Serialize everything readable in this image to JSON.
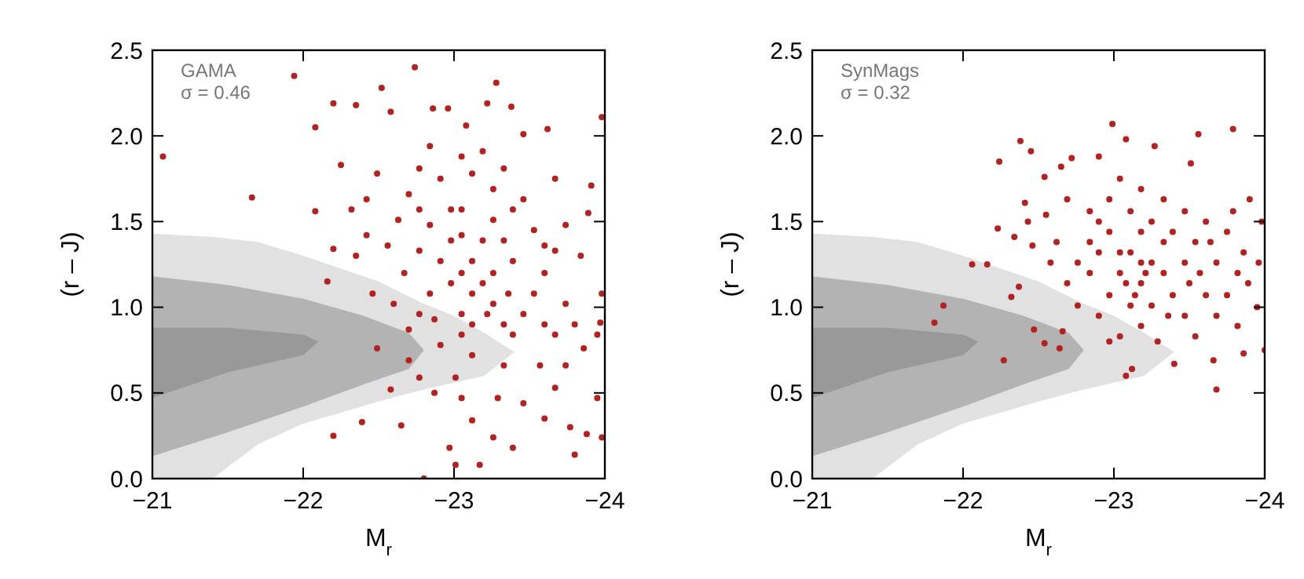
{
  "chart_data": [
    {
      "type": "scatter",
      "xlabel": "M$_{r}$",
      "ylabel": "(r – J)",
      "xlim": [
        -21,
        -24
      ],
      "ylim": [
        0,
        2.5
      ],
      "xticks": [
        {
          "value": -21,
          "label": "−21"
        },
        {
          "value": -22,
          "label": "−22"
        },
        {
          "value": -23,
          "label": "−23"
        },
        {
          "value": -24,
          "label": "−24"
        }
      ],
      "yticks": [
        {
          "value": 0,
          "label": "0.0"
        },
        {
          "value": 0.5,
          "label": "0.5"
        },
        {
          "value": 1,
          "label": "1.0"
        },
        {
          "value": 1.5,
          "label": "1.5"
        },
        {
          "value": 2,
          "label": "2.0"
        },
        {
          "value": 2.5,
          "label": "2.5"
        }
      ],
      "annotations": [
        "GAMA",
        "σ = 0.46"
      ],
      "series": [
        {
          "type": "area",
          "color": "#e1e1e1",
          "x": [
            -21,
            -21.4,
            -21.7,
            -22,
            -22.5,
            -22.8,
            -23,
            -23.2,
            -23.4,
            -23.2,
            -23,
            -22.8,
            -22.5,
            -22,
            -21.7,
            -21.4,
            -21
          ],
          "values": [
            1.43,
            1.41,
            1.38,
            1.3,
            1.15,
            1.02,
            0.95,
            0.85,
            0.74,
            0.6,
            0.56,
            0.52,
            0.45,
            0.32,
            0.2,
            0,
            0
          ]
        },
        {
          "type": "area",
          "color": "#b3b3b3",
          "x": [
            -21,
            -21.5,
            -22,
            -22.4,
            -22.7,
            -22.8,
            -22.7,
            -22.4,
            -22,
            -21.5,
            -21
          ],
          "values": [
            1.18,
            1.13,
            1.05,
            0.95,
            0.85,
            0.75,
            0.64,
            0.55,
            0.42,
            0.27,
            0.13
          ]
        },
        {
          "type": "area",
          "color": "#999999",
          "x": [
            -21,
            -21.5,
            -22,
            -22.1,
            -22,
            -21.5,
            -21
          ],
          "values": [
            0.88,
            0.88,
            0.84,
            0.8,
            0.72,
            0.62,
            0.47
          ]
        },
        {
          "type": "scatter",
          "marker": "circle",
          "color": "#b22222",
          "x": [
            -21.07,
            -21.66,
            -21.94,
            -22.74,
            -23.28,
            -22.2,
            -22.08,
            -22.35,
            -22.16,
            -22.2,
            -22.39,
            -22.8,
            -23.01,
            -23.17,
            -23.39,
            -23.8,
            -23.98,
            -23.98,
            -23.62,
            -23.46,
            -23.08,
            -23.22,
            -23.38,
            -22.52,
            -22.58,
            -22.86,
            -22.96,
            -22.25,
            -22.08,
            -22.2,
            -22.49,
            -23.91,
            -23.67,
            -23.89,
            -22.58,
            -22.65,
            -22.97,
            -23.12,
            -23.26,
            -23.6,
            -23.77,
            -23.88,
            -23.95,
            -23.86,
            -23.95,
            -23.97,
            -23.98,
            -23.84,
            -23.74,
            -22.42,
            -22.35,
            -22.46,
            -22.49,
            -22.7,
            -22.77,
            -22.87,
            -23.01,
            -23.05,
            -23.29,
            -23.46,
            -23.67,
            -23.74,
            -23.57,
            -23.33,
            -23.12,
            -22.91,
            -22.7,
            -22.6,
            -22.67,
            -22.56,
            -22.63,
            -22.7,
            -22.77,
            -22.84,
            -22.91,
            -22.98,
            -23.05,
            -23.12,
            -23.19,
            -23.26,
            -23.33,
            -23.39,
            -23.46,
            -23.53,
            -23.6,
            -23.67,
            -23.53,
            -23.39,
            -23.26,
            -23.12,
            -23.05,
            -23.19,
            -23.33,
            -23.46,
            -22.98,
            -23.05,
            -22.91,
            -22.84,
            -22.77,
            -23.05,
            -23.12,
            -23.22,
            -23.26,
            -23.36,
            -23.39,
            -23.19,
            -22.98,
            -22.84,
            -22.77,
            -23.74,
            -23.8,
            -23.67,
            -23.6,
            -23.05,
            -22.87,
            -23.12,
            -23.6,
            -22.77,
            -22.42,
            -22.32,
            -23.33,
            -23.26,
            -23.05
          ],
          "values": [
            1.88,
            1.64,
            2.35,
            2.4,
            2.31,
            2.19,
            2.05,
            2.18,
            1.15,
            0.25,
            0.33,
            0.0,
            0.08,
            0.08,
            0.18,
            0.14,
            0.24,
            2.11,
            2.04,
            2.01,
            2.06,
            2.19,
            2.17,
            2.28,
            2.14,
            2.16,
            2.16,
            1.83,
            1.56,
            1.34,
            1.78,
            1.71,
            1.75,
            1.55,
            0.52,
            0.31,
            0.18,
            0.34,
            0.24,
            0.35,
            0.3,
            0.26,
            0.47,
            0.76,
            0.84,
            0.91,
            1.08,
            1.3,
            1.48,
            1.42,
            1.3,
            1.08,
            0.76,
            0.69,
            0.59,
            0.5,
            0.59,
            0.47,
            0.47,
            0.44,
            0.53,
            0.66,
            0.66,
            0.66,
            0.72,
            0.78,
            0.87,
            1.02,
            1.2,
            1.36,
            1.51,
            1.66,
            1.81,
            1.94,
            1.75,
            1.57,
            1.42,
            1.27,
            1.14,
            1.02,
            0.9,
            0.84,
            0.96,
            1.08,
            1.2,
            1.33,
            1.45,
            1.57,
            1.69,
            1.78,
            1.88,
            1.91,
            1.81,
            1.63,
            1.14,
            1.2,
            1.27,
            1.08,
            0.96,
            0.96,
            1.08,
            0.96,
            1.2,
            1.08,
            1.27,
            1.39,
            1.39,
            1.48,
            1.33,
            1.02,
            0.9,
            0.84,
            0.9,
            0.84,
            0.93,
            0.9,
            1.36,
            1.57,
            1.63,
            1.57,
            1.39,
            1.51,
            1.57
          ]
        }
      ]
    },
    {
      "type": "scatter",
      "xlabel": "M$_{r}$",
      "ylabel": "(r – J)",
      "xlim": [
        -21,
        -24
      ],
      "ylim": [
        0,
        2.5
      ],
      "xticks": [
        {
          "value": -21,
          "label": "−21"
        },
        {
          "value": -22,
          "label": "−22"
        },
        {
          "value": -23,
          "label": "−23"
        },
        {
          "value": -24,
          "label": "−24"
        }
      ],
      "yticks": [
        {
          "value": 0,
          "label": "0.0"
        },
        {
          "value": 0.5,
          "label": "0.5"
        },
        {
          "value": 1,
          "label": "1.0"
        },
        {
          "value": 1.5,
          "label": "1.5"
        },
        {
          "value": 2,
          "label": "2.0"
        },
        {
          "value": 2.5,
          "label": "2.5"
        }
      ],
      "annotations": [
        "SynMags",
        "σ = 0.32"
      ],
      "series": [
        {
          "type": "area",
          "color": "#e1e1e1",
          "x": [
            -21,
            -21.4,
            -21.7,
            -22,
            -22.5,
            -22.8,
            -23,
            -23.2,
            -23.4,
            -23.2,
            -23,
            -22.8,
            -22.5,
            -22,
            -21.7,
            -21.4,
            -21
          ],
          "values": [
            1.43,
            1.41,
            1.38,
            1.3,
            1.15,
            1.02,
            0.95,
            0.85,
            0.74,
            0.6,
            0.56,
            0.52,
            0.45,
            0.32,
            0.2,
            0,
            0
          ]
        },
        {
          "type": "area",
          "color": "#b3b3b3",
          "x": [
            -21,
            -21.5,
            -22,
            -22.4,
            -22.7,
            -22.8,
            -22.7,
            -22.4,
            -22,
            -21.5,
            -21
          ],
          "values": [
            1.18,
            1.13,
            1.05,
            0.95,
            0.85,
            0.75,
            0.64,
            0.55,
            0.42,
            0.27,
            0.13
          ]
        },
        {
          "type": "area",
          "color": "#999999",
          "x": [
            -21,
            -21.5,
            -22,
            -22.1,
            -22,
            -21.5,
            -21
          ],
          "values": [
            0.88,
            0.88,
            0.84,
            0.8,
            0.72,
            0.62,
            0.47
          ]
        },
        {
          "type": "scatter",
          "marker": "circle",
          "color": "#b22222",
          "x": [
            -21.81,
            -21.87,
            -22.06,
            -22.16,
            -22.23,
            -22.24,
            -22.27,
            -22.38,
            -22.45,
            -22.37,
            -22.32,
            -22.47,
            -22.54,
            -22.64,
            -22.66,
            -22.65,
            -22.72,
            -22.54,
            -22.99,
            -23.08,
            -23.56,
            -23.79,
            -23.27,
            -22.9,
            -23.68,
            -23.08,
            -23.12,
            -23.4,
            -23.66,
            -23.86,
            -24.0,
            -23.95,
            -23.98,
            -23.9,
            -23.51,
            -22.41,
            -22.43,
            -22.34,
            -22.46,
            -22.55,
            -22.62,
            -22.58,
            -22.69,
            -22.76,
            -22.84,
            -22.9,
            -22.97,
            -23.04,
            -23.18,
            -23.33,
            -23.47,
            -23.61,
            -23.75,
            -23.86,
            -23.82,
            -23.68,
            -23.54,
            -23.39,
            -23.25,
            -23.11,
            -22.97,
            -22.84,
            -22.76,
            -22.9,
            -22.97,
            -23.04,
            -23.11,
            -23.18,
            -23.25,
            -23.33,
            -23.39,
            -23.47,
            -23.54,
            -23.61,
            -23.68,
            -23.75,
            -23.82,
            -23.89,
            -23.96,
            -23.18,
            -23.04,
            -22.97,
            -23.29,
            -23.11,
            -23.18,
            -23.25,
            -23.04,
            -22.9,
            -22.84,
            -22.69,
            -23.18,
            -23.33,
            -23.47,
            -23.57,
            -23.36,
            -23.14,
            -23.08,
            -23.21,
            -23.5,
            -23.64,
            -23.79
          ],
          "values": [
            0.91,
            1.01,
            1.25,
            1.25,
            1.46,
            1.85,
            0.69,
            1.97,
            1.91,
            1.12,
            1.06,
            0.87,
            0.79,
            0.76,
            0.86,
            1.82,
            1.87,
            1.76,
            2.07,
            1.98,
            2.01,
            2.04,
            1.94,
            1.88,
            0.52,
            0.6,
            0.64,
            0.67,
            0.69,
            0.73,
            0.75,
            1.0,
            1.5,
            1.63,
            1.84,
            1.61,
            1.5,
            1.41,
            1.36,
            1.54,
            1.38,
            1.26,
            1.14,
            1.26,
            1.38,
            1.5,
            1.63,
            1.75,
            1.69,
            1.63,
            1.56,
            1.5,
            1.44,
            1.32,
            1.2,
            1.26,
            1.38,
            1.44,
            1.5,
            1.56,
            1.44,
            1.2,
            1.01,
            0.95,
            1.07,
            1.2,
            1.32,
            1.14,
            1.01,
            1.2,
            1.07,
            0.95,
            0.83,
            1.07,
            0.95,
            1.07,
            0.89,
            1.14,
            1.26,
            0.89,
            0.83,
            0.8,
            0.8,
            1.01,
            1.26,
            1.26,
            1.32,
            1.32,
            1.56,
            1.63,
            1.44,
            1.38,
            1.26,
            1.2,
            0.95,
            1.07,
            1.14,
            1.2,
            1.14,
            1.38,
            1.56
          ]
        }
      ]
    }
  ]
}
